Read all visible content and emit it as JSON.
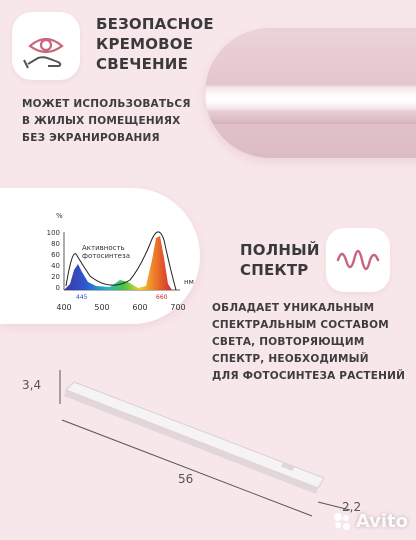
{
  "feature_safe": {
    "icon": "eye-hand-icon",
    "title_lines": [
      "БЕЗОПАСНОЕ",
      "КРЕМОВОЕ",
      "СВЕЧЕНИЕ"
    ],
    "desc_lines": [
      "МОЖЕТ ИСПОЛЬЗОВАТЬСЯ",
      "В ЖИЛЫХ ПОМЕЩЕНИЯХ",
      "БЕЗ ЭКРАНИРОВАНИЯ"
    ]
  },
  "feature_spectrum": {
    "icon": "wave-signal-icon",
    "title_lines": [
      "ПОЛНЫЙ",
      "СПЕКТР"
    ],
    "desc_lines": [
      "ОБЛАДАЕТ УНИКАЛЬНЫМ",
      "СПЕКТРАЛЬНЫМ СОСТАВОМ",
      "СВЕТА, ПОВТОРЯЮЩИМ",
      "СПЕКТР, НЕОБХОДИМЫЙ",
      "ДЛЯ ФОТОСИНТЕЗА РАСТЕНИЙ"
    ]
  },
  "spectrum_chart": {
    "y_unit": "%",
    "y_ticks": [
      "100",
      "80",
      "60",
      "40",
      "20",
      "0"
    ],
    "x_ticks": [
      "400",
      "500",
      "600",
      "700"
    ],
    "x_unit": "нм",
    "peak_labels": [
      "445",
      "660"
    ],
    "curve_label_lines": [
      "Активность",
      "фотосинтеза"
    ]
  },
  "dimensions": {
    "height": "3,4",
    "length": "56",
    "depth": "2,2"
  },
  "watermark": {
    "text": "Avito",
    "icon": "avito-dots-icon"
  },
  "colors": {
    "background": "#f8e7ea",
    "accent": "#c9657a"
  }
}
